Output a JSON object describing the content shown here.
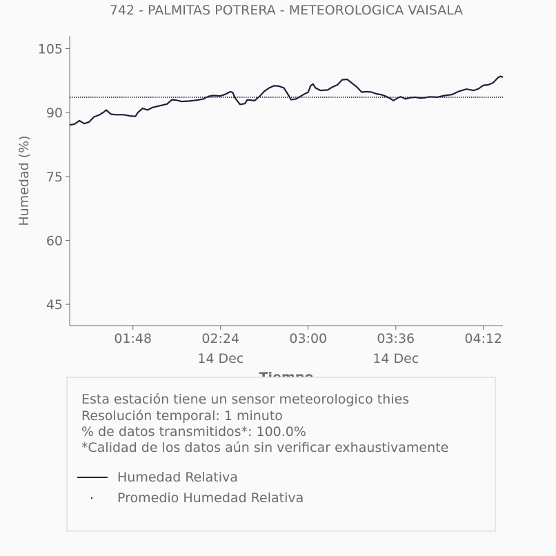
{
  "chart_data": {
    "type": "line",
    "title": "742 - PALMITAS POTRERA - METEOROLOGICA VAISALA",
    "xlabel": "Tiempo",
    "ylabel": "Humedad (%)",
    "ylim": [
      40,
      108
    ],
    "xlim": [
      "01:22",
      "04:20"
    ],
    "y_ticks": [
      105,
      90,
      75,
      60,
      45
    ],
    "x_ticks": [
      {
        "time": "01:48",
        "label": "01:48",
        "sublabel": ""
      },
      {
        "time": "02:24",
        "label": "02:24",
        "sublabel": "14 Dec"
      },
      {
        "time": "03:00",
        "label": "03:00",
        "sublabel": ""
      },
      {
        "time": "03:36",
        "label": "03:36",
        "sublabel": "14 Dec"
      },
      {
        "time": "04:12",
        "label": "04:12",
        "sublabel": ""
      }
    ],
    "grid": false,
    "legend": "bottom",
    "series": [
      {
        "name": "Humedad Relativa",
        "color": "#1f1f3a",
        "style": "solid",
        "points": [
          [
            "01:22",
            87.1
          ],
          [
            "01:24",
            87.3
          ],
          [
            "01:26",
            88.1
          ],
          [
            "01:28",
            87.4
          ],
          [
            "01:30",
            87.8
          ],
          [
            "01:32",
            89.0
          ],
          [
            "01:34",
            89.4
          ],
          [
            "01:36",
            90.1
          ],
          [
            "01:37",
            90.6
          ],
          [
            "01:39",
            89.6
          ],
          [
            "01:41",
            89.5
          ],
          [
            "01:44",
            89.5
          ],
          [
            "01:47",
            89.2
          ],
          [
            "01:49",
            89.1
          ],
          [
            "01:50",
            90.0
          ],
          [
            "01:52",
            91.0
          ],
          [
            "01:54",
            90.6
          ],
          [
            "01:56",
            91.2
          ],
          [
            "01:59",
            91.6
          ],
          [
            "02:02",
            92.0
          ],
          [
            "02:04",
            93.0
          ],
          [
            "02:06",
            92.9
          ],
          [
            "02:08",
            92.6
          ],
          [
            "02:11",
            92.7
          ],
          [
            "02:14",
            92.9
          ],
          [
            "02:17",
            93.2
          ],
          [
            "02:19",
            93.8
          ],
          [
            "02:21",
            94.0
          ],
          [
            "02:24",
            93.9
          ],
          [
            "02:26",
            94.3
          ],
          [
            "02:28",
            94.9
          ],
          [
            "02:29",
            94.7
          ],
          [
            "02:30",
            93.4
          ],
          [
            "02:32",
            91.9
          ],
          [
            "02:34",
            92.1
          ],
          [
            "02:35",
            93.0
          ],
          [
            "02:38",
            92.8
          ],
          [
            "02:40",
            93.8
          ],
          [
            "02:42",
            95.0
          ],
          [
            "02:44",
            95.8
          ],
          [
            "02:46",
            96.3
          ],
          [
            "02:48",
            96.2
          ],
          [
            "02:50",
            95.8
          ],
          [
            "02:52",
            94.0
          ],
          [
            "02:53",
            93.0
          ],
          [
            "02:55",
            93.2
          ],
          [
            "02:58",
            94.2
          ],
          [
            "03:00",
            94.8
          ],
          [
            "03:01",
            96.3
          ],
          [
            "03:02",
            96.7
          ],
          [
            "03:03",
            95.8
          ],
          [
            "03:05",
            95.2
          ],
          [
            "03:08",
            95.3
          ],
          [
            "03:10",
            96.0
          ],
          [
            "03:12",
            96.5
          ],
          [
            "03:14",
            97.7
          ],
          [
            "03:16",
            97.8
          ],
          [
            "03:18",
            96.9
          ],
          [
            "03:20",
            96.0
          ],
          [
            "03:22",
            94.8
          ],
          [
            "03:24",
            94.9
          ],
          [
            "03:26",
            94.8
          ],
          [
            "03:28",
            94.4
          ],
          [
            "03:30",
            94.2
          ],
          [
            "03:32",
            93.8
          ],
          [
            "03:34",
            93.2
          ],
          [
            "03:35",
            92.8
          ],
          [
            "03:37",
            93.5
          ],
          [
            "03:38",
            93.7
          ],
          [
            "03:40",
            93.2
          ],
          [
            "03:42",
            93.5
          ],
          [
            "03:44",
            93.6
          ],
          [
            "03:46",
            93.4
          ],
          [
            "03:48",
            93.5
          ],
          [
            "03:50",
            93.7
          ],
          [
            "03:53",
            93.6
          ],
          [
            "03:56",
            94.0
          ],
          [
            "03:59",
            94.2
          ],
          [
            "04:02",
            95.0
          ],
          [
            "04:05",
            95.5
          ],
          [
            "04:08",
            95.2
          ],
          [
            "04:10",
            95.6
          ],
          [
            "04:12",
            96.4
          ],
          [
            "04:14",
            96.5
          ],
          [
            "04:16",
            97.0
          ],
          [
            "04:18",
            98.2
          ],
          [
            "04:19",
            98.5
          ],
          [
            "04:20",
            98.3
          ]
        ]
      },
      {
        "name": "Promedio Humedad Relativa",
        "color": "#1f1f3a",
        "style": "dotted",
        "points": [
          [
            "01:22",
            93.6
          ],
          [
            "04:20",
            93.6
          ]
        ]
      }
    ]
  },
  "info": {
    "line1": "Esta estación tiene un sensor meteorologico thies",
    "line2": "Resolución temporal: 1 minuto",
    "line3": "% de datos transmitidos*: 100.0%",
    "line4": "*Calidad de los datos aún sin verificar exhaustivamente"
  },
  "legend": {
    "item1": "Humedad Relativa",
    "item2": "Promedio Humedad Relativa"
  }
}
